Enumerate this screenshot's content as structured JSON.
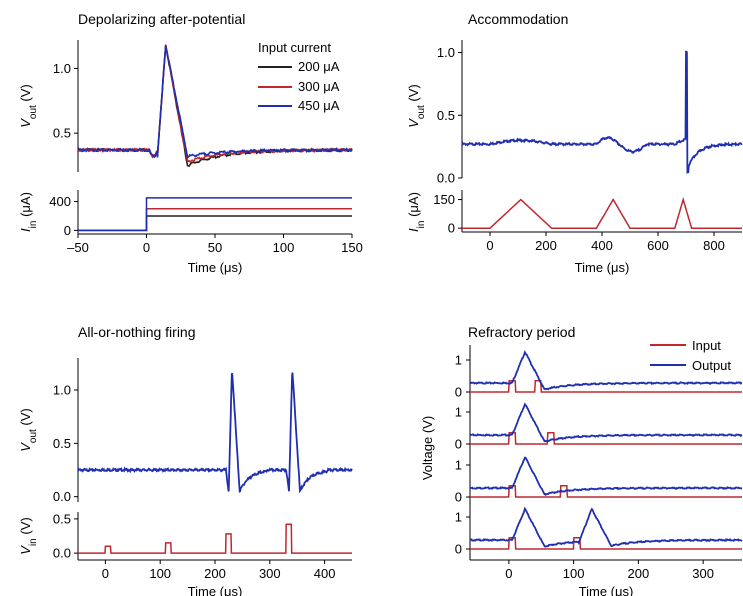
{
  "colors": {
    "black": "#222222",
    "red": "#c0282f",
    "blue": "#1f2fb0"
  },
  "chart_data": [
    {
      "type": "line",
      "title": "Depolarizing after-potential",
      "top": {
        "ylabel": "V",
        "ylabel_sub": "out",
        "ylabel_unit": "(V)",
        "ylim": [
          0.2,
          1.22
        ],
        "yticks": [
          0.5,
          1.0
        ],
        "ytick_labels": [
          "0.5",
          "1.0"
        ]
      },
      "bottom": {
        "ylabel": "I",
        "ylabel_sub": "in",
        "ylabel_unit": "(μA)",
        "ylim": [
          -50,
          560
        ],
        "yticks": [
          0,
          400
        ],
        "ytick_labels": [
          "0",
          "400"
        ]
      },
      "xlim": [
        -50,
        150
      ],
      "xticks": [
        -50,
        0,
        50,
        100,
        150
      ],
      "xtick_labels": [
        "–50",
        "0",
        "50",
        "100",
        "150"
      ],
      "xlabel": "Time (μs)",
      "legend_title": "Input current",
      "series": [
        {
          "name": "200 μA",
          "color": "black",
          "current": 200,
          "undershoot_depth": 0.12
        },
        {
          "name": "300 μA",
          "color": "red",
          "current": 300,
          "undershoot_depth": 0.09
        },
        {
          "name": "450 μA",
          "color": "blue",
          "current": 450,
          "undershoot_depth": 0.05
        }
      ]
    },
    {
      "type": "line",
      "title": "Accommodation",
      "top": {
        "ylabel": "V",
        "ylabel_sub": "out",
        "ylabel_unit": "(V)",
        "ylim": [
          0.0,
          1.1
        ],
        "yticks": [
          0.0,
          0.5,
          1.0
        ],
        "ytick_labels": [
          "0.0",
          "0.5",
          "1.0"
        ]
      },
      "bottom": {
        "ylabel": "I",
        "ylabel_sub": "in",
        "ylabel_unit": "(μA)",
        "ylim": [
          -20,
          200
        ],
        "yticks": [
          0,
          150
        ],
        "ytick_labels": [
          "0",
          "150"
        ]
      },
      "xlim": [
        -100,
        900
      ],
      "xticks": [
        0,
        200,
        400,
        600,
        800
      ],
      "xtick_labels": [
        "0",
        "200",
        "400",
        "600",
        "800"
      ],
      "xlabel": "Time (μs)",
      "input_triangles": [
        {
          "start": 0,
          "peak": 110,
          "end": 220,
          "height": 150
        },
        {
          "start": 380,
          "peak": 440,
          "end": 500,
          "height": 150
        },
        {
          "start": 660,
          "peak": 690,
          "end": 720,
          "height": 150
        }
      ],
      "spike_time": 700
    },
    {
      "type": "line",
      "title": "All-or-nothing firing",
      "top": {
        "ylabel": "V",
        "ylabel_sub": "out",
        "ylabel_unit": "(V)",
        "ylim": [
          -0.05,
          1.3
        ],
        "yticks": [
          0.0,
          0.5,
          1.0
        ],
        "ytick_labels": [
          "0.0",
          "0.5",
          "1.0"
        ]
      },
      "bottom": {
        "ylabel": "V",
        "ylabel_sub": "in",
        "ylabel_unit": "(V)",
        "ylim": [
          -0.1,
          0.6
        ],
        "yticks": [
          0.0,
          0.5
        ],
        "ytick_labels": [
          "0.0",
          "0.5"
        ]
      },
      "xlim": [
        -50,
        450
      ],
      "xticks": [
        0,
        100,
        200,
        300,
        400
      ],
      "xtick_labels": [
        "0",
        "100",
        "200",
        "300",
        "400"
      ],
      "xlabel": "Time (μs)",
      "input_pulses": [
        {
          "t": 0,
          "height": 0.1
        },
        {
          "t": 110,
          "height": 0.15
        },
        {
          "t": 220,
          "height": 0.28
        },
        {
          "t": 330,
          "height": 0.42
        }
      ],
      "spike_times": [
        225,
        335
      ]
    },
    {
      "type": "line",
      "title": "Refractory period",
      "ylabel": "Voltage (V)",
      "xlim": [
        -60,
        360
      ],
      "xticks": [
        0,
        100,
        200,
        300
      ],
      "xtick_labels": [
        "0",
        "100",
        "200",
        "300"
      ],
      "xlabel": "Time (μs)",
      "yticks": [
        0,
        1
      ],
      "ytick_labels": [
        "0",
        "1"
      ],
      "legend": [
        {
          "name": "Input",
          "color": "red"
        },
        {
          "name": "Output",
          "color": "blue"
        }
      ],
      "traces": [
        {
          "second_pulse": 40,
          "second_spike": false
        },
        {
          "second_pulse": 60,
          "second_spike": false
        },
        {
          "second_pulse": 80,
          "second_spike": false
        },
        {
          "second_pulse": 100,
          "second_spike": true
        }
      ]
    }
  ]
}
